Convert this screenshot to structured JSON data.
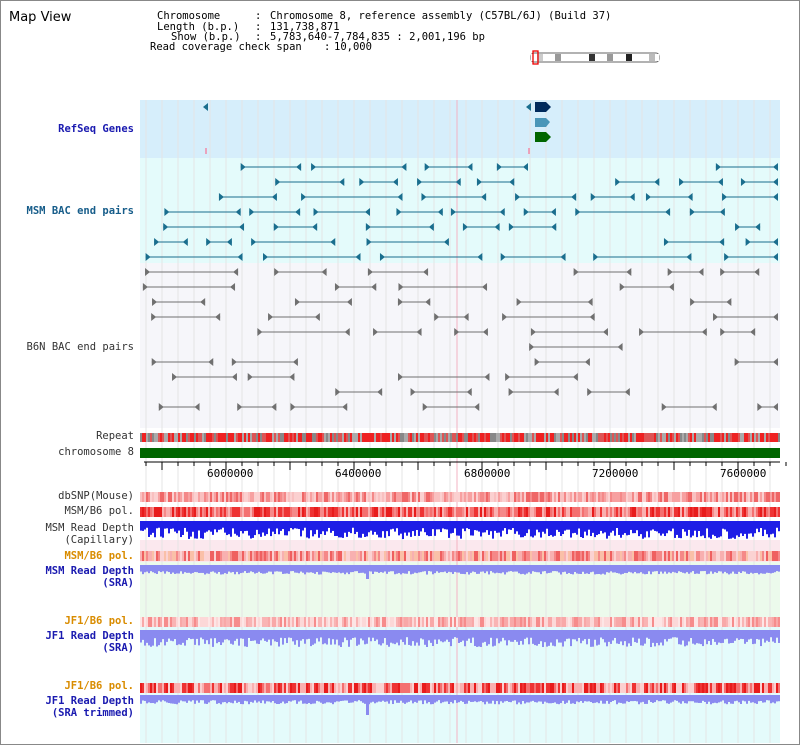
{
  "page_title": "Map View",
  "info": {
    "chromosome_label": "Chromosome",
    "chromosome_value": "Chromosome 8, reference assembly (C57BL/6J) (Build 37)",
    "length_label": "Length (b.p.)",
    "length_value": "131,738,871",
    "show_label": "Show (b.p.)",
    "show_value": "5,783,640-7,784,835 : 2,001,196 bp",
    "coverage_label": "Read coverage check span",
    "coverage_value": "10,000"
  },
  "tracks": {
    "refseq": "RefSeq Genes",
    "msm_bac": "MSM BAC end pairs",
    "b6n_bac": "B6N BAC end pairs",
    "repeat": "Repeat",
    "chromosome": "chromosome 8",
    "dbsnp": "dbSNP(Mouse)",
    "msm_b6_pol": "MSM/B6 pol.",
    "msm_read_depth_cap_1": "MSM Read Depth",
    "msm_read_depth_cap_2": "(Capillary)",
    "msm_b6_pol_2": "MSM/B6 pol.",
    "msm_read_depth_sra_1": "MSM Read Depth",
    "msm_read_depth_sra_2": "(SRA)",
    "jf1_b6_pol": "JF1/B6 pol.",
    "jf1_read_depth_1": "JF1 Read Depth",
    "jf1_read_depth_2": "(SRA)",
    "jf1_b6_pol_2": "JF1/B6 pol.",
    "jf1_trim_1": "JF1 Read Depth",
    "jf1_trim_2": "(SRA trimmed)"
  },
  "ruler": {
    "ticks": [
      "6000000",
      "6400000",
      "6800000",
      "7200000",
      "7600000"
    ]
  },
  "colors": {
    "refseq_bg": "#d6eefb",
    "msm_bg": "#e4fbfb",
    "b6n_bg": "#f6f6fa",
    "chromosome_bar": "#006600",
    "msm_line": "#1a6e8e",
    "b6n_line": "#666666",
    "depth_blue": "#1a1ae6",
    "depth_light": "#8080f0",
    "pol_red": "#ee3333"
  }
}
